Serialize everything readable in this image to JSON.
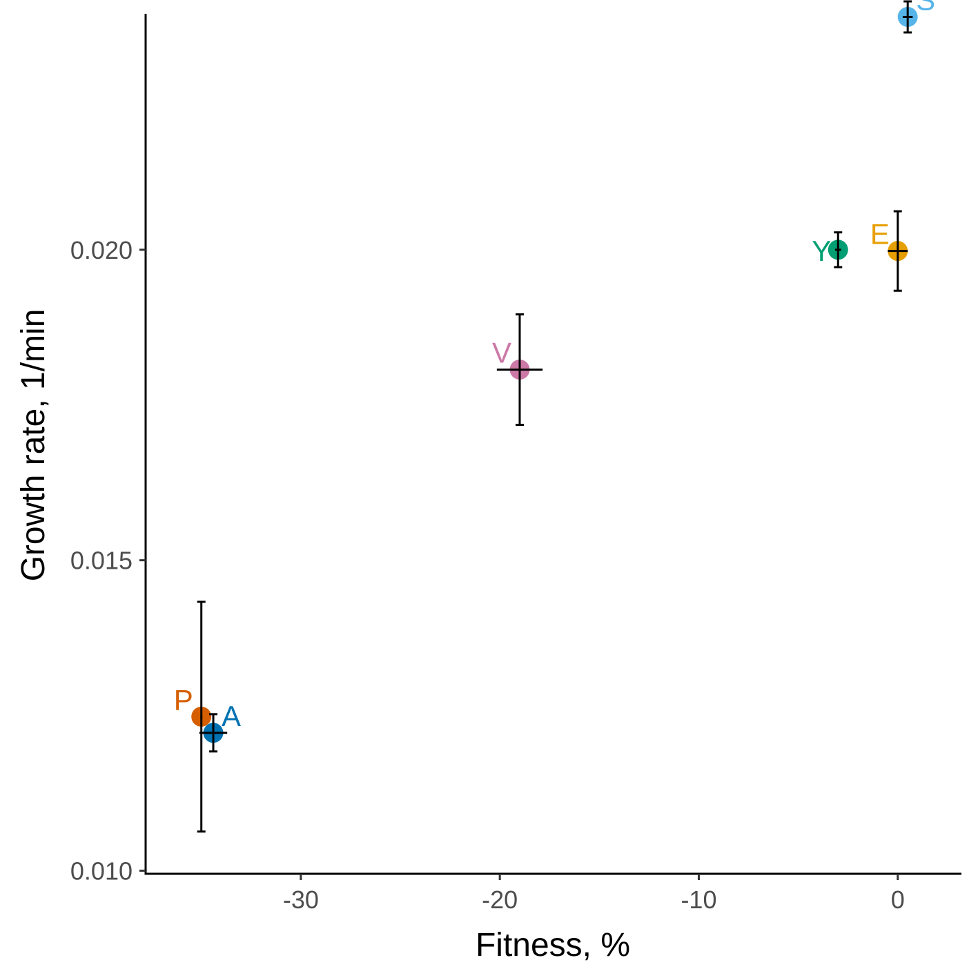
{
  "chart_data": {
    "type": "scatter",
    "title": "",
    "xlabel": "Fitness, %",
    "ylabel": "Growth rate, 1/min",
    "xlim": [
      -37.8,
      3.2
    ],
    "ylim": [
      0.00995,
      0.0238
    ],
    "x_ticks": [
      -30,
      -20,
      -10,
      0
    ],
    "x_tick_labels": [
      "-30",
      "-20",
      "-10",
      "0"
    ],
    "y_ticks": [
      0.01,
      0.015,
      0.02
    ],
    "y_tick_labels": [
      "0.010",
      "0.015",
      "0.020"
    ],
    "grid": false,
    "legend": "none",
    "points": [
      {
        "label": "S",
        "x": 0.5,
        "y": 0.02375,
        "x_err": 0.25,
        "y_err": 0.00025,
        "color": "#56B4E9",
        "label_pos": "upper-right"
      },
      {
        "label": "E",
        "x": 0.0,
        "y": 0.01998,
        "x_err": 0.5,
        "y_err": 0.00064,
        "color": "#E69F00",
        "label_pos": "upper-left"
      },
      {
        "label": "Y",
        "x": -3.0,
        "y": 0.02,
        "x_err": 0.15,
        "y_err": 0.00028,
        "color": "#009E73",
        "label_pos": "left"
      },
      {
        "label": "V",
        "x": -19.0,
        "y": 0.01807,
        "x_err": 1.15,
        "y_err": 0.00089,
        "color": "#CC79A7",
        "label_pos": "upper-left"
      },
      {
        "label": "P",
        "x": -35.0,
        "y": 0.01248,
        "x_err": 0.05,
        "y_err": 0.00185,
        "color": "#D55E00",
        "label_pos": "upper-left"
      },
      {
        "label": "A",
        "x": -34.4,
        "y": 0.01222,
        "x_err": 0.7,
        "y_err": 0.0003,
        "color": "#0072B2",
        "label_pos": "upper-right"
      }
    ]
  }
}
